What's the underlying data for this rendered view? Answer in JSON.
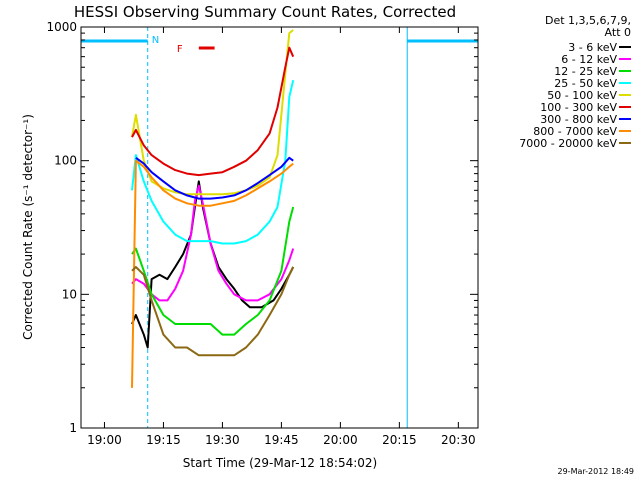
{
  "chart_data": {
    "type": "line",
    "title": "HESSI Observing Summary Count Rates, Corrected",
    "xlabel": "Start Time (29-Mar-12 18:54:02)",
    "ylabel": "Corrected Count Rate (s⁻¹ detector⁻¹)",
    "xlim": [
      "18:54:02",
      "20:35:00"
    ],
    "ylim": [
      1,
      1000
    ],
    "yscale": "log",
    "x_ticks": [
      "19:00",
      "19:15",
      "19:30",
      "19:45",
      "20:00",
      "20:15",
      "20:30"
    ],
    "y_ticks": [
      "1",
      "10",
      "100",
      "1000"
    ],
    "legend_header": [
      "Det 1,3,5,6,7,9,",
      "Att 0"
    ],
    "legend_position": "right",
    "timestamp": "29-Mar-2012 18:49",
    "flags": [
      {
        "label": "N",
        "color": "#00bfff"
      },
      {
        "label": "F",
        "color": "#e00000"
      }
    ],
    "night_intervals": [
      {
        "start": "18:54:02",
        "end": "19:11:00"
      },
      {
        "start": "20:17:00",
        "end": "20:35:00"
      }
    ],
    "flare_flag": {
      "start": "19:24:00",
      "end": "19:28:00"
    },
    "series": [
      {
        "name": "3 - 6 keV",
        "color": "#000000",
        "x": [
          "19:07",
          "19:08",
          "19:10",
          "19:11",
          "19:12",
          "19:14",
          "19:16",
          "19:18",
          "19:20",
          "19:22",
          "19:23",
          "19:24",
          "19:25",
          "19:27",
          "19:29",
          "19:31",
          "19:33",
          "19:35",
          "19:37",
          "19:40",
          "19:43",
          "19:45",
          "19:47",
          "19:48"
        ],
        "y": [
          6,
          7,
          5,
          4,
          13,
          14,
          13,
          16,
          20,
          28,
          45,
          70,
          45,
          24,
          16,
          13,
          11,
          9,
          8,
          8,
          9,
          11,
          14,
          16
        ]
      },
      {
        "name": "6 - 12 keV",
        "color": "#ff00ff",
        "x": [
          "19:07",
          "19:08",
          "19:10",
          "19:12",
          "19:14",
          "19:16",
          "19:18",
          "19:20",
          "19:22",
          "19:23",
          "19:24",
          "19:25",
          "19:27",
          "19:29",
          "19:31",
          "19:33",
          "19:36",
          "19:39",
          "19:42",
          "19:45",
          "19:47",
          "19:48"
        ],
        "y": [
          12,
          13,
          12,
          10,
          9,
          9,
          11,
          15,
          28,
          50,
          65,
          48,
          24,
          15,
          12,
          10,
          9,
          9,
          10,
          13,
          18,
          22
        ]
      },
      {
        "name": "12 - 25 keV",
        "color": "#00dd00",
        "x": [
          "19:07",
          "19:08",
          "19:10",
          "19:12",
          "19:15",
          "19:18",
          "19:21",
          "19:24",
          "19:27",
          "19:30",
          "19:33",
          "19:36",
          "19:39",
          "19:42",
          "19:45",
          "19:47",
          "19:48"
        ],
        "y": [
          20,
          22,
          15,
          10,
          7,
          6,
          6,
          6,
          6,
          5,
          5,
          6,
          7,
          9,
          15,
          35,
          45
        ]
      },
      {
        "name": "25 - 50 keV",
        "color": "#00ffff",
        "x": [
          "19:07",
          "19:08",
          "19:10",
          "19:12",
          "19:15",
          "19:18",
          "19:21",
          "19:24",
          "19:27",
          "19:30",
          "19:33",
          "19:36",
          "19:39",
          "19:42",
          "19:44",
          "19:46",
          "19:47",
          "19:48"
        ],
        "y": [
          60,
          110,
          70,
          50,
          35,
          28,
          25,
          25,
          25,
          24,
          24,
          25,
          28,
          35,
          45,
          100,
          300,
          400
        ]
      },
      {
        "name": "50 - 100 keV",
        "color": "#dddd00",
        "x": [
          "19:07",
          "19:08",
          "19:10",
          "19:12",
          "19:15",
          "19:18",
          "19:21",
          "19:24",
          "19:27",
          "19:30",
          "19:33",
          "19:36",
          "19:39",
          "19:42",
          "19:44",
          "19:46",
          "19:47",
          "19:48"
        ],
        "y": [
          150,
          220,
          100,
          70,
          62,
          58,
          56,
          56,
          56,
          56,
          57,
          60,
          65,
          75,
          110,
          450,
          900,
          950
        ]
      },
      {
        "name": "100 - 300 keV",
        "color": "#e00000",
        "x": [
          "19:07",
          "19:08",
          "19:10",
          "19:12",
          "19:15",
          "19:18",
          "19:21",
          "19:24",
          "19:27",
          "19:30",
          "19:33",
          "19:36",
          "19:39",
          "19:42",
          "19:44",
          "19:46",
          "19:47",
          "19:48"
        ],
        "y": [
          150,
          170,
          130,
          110,
          95,
          85,
          80,
          78,
          80,
          82,
          90,
          100,
          120,
          160,
          250,
          500,
          700,
          600
        ]
      },
      {
        "name": "300 - 800 keV",
        "color": "#0000ff",
        "x": [
          "19:08",
          "19:10",
          "19:12",
          "19:15",
          "19:18",
          "19:21",
          "19:24",
          "19:27",
          "19:30",
          "19:33",
          "19:36",
          "19:39",
          "19:42",
          "19:45",
          "19:47",
          "19:48"
        ],
        "y": [
          105,
          95,
          82,
          70,
          60,
          55,
          52,
          52,
          53,
          55,
          60,
          68,
          78,
          90,
          105,
          100
        ]
      },
      {
        "name": "800 - 7000 keV",
        "color": "#ff8c00",
        "x": [
          "19:07",
          "19:08",
          "19:10",
          "19:12",
          "19:15",
          "19:18",
          "19:21",
          "19:24",
          "19:27",
          "19:30",
          "19:33",
          "19:36",
          "19:39",
          "19:42",
          "19:45",
          "19:47",
          "19:48"
        ],
        "y": [
          2,
          100,
          90,
          75,
          60,
          52,
          48,
          46,
          46,
          48,
          50,
          55,
          62,
          70,
          80,
          90,
          95
        ]
      },
      {
        "name": "7000 - 20000 keV",
        "color": "#8b6914",
        "x": [
          "19:07",
          "19:08",
          "19:10",
          "19:12",
          "19:15",
          "19:18",
          "19:21",
          "19:24",
          "19:27",
          "19:30",
          "19:33",
          "19:36",
          "19:39",
          "19:42",
          "19:45",
          "19:47",
          "19:48"
        ],
        "y": [
          15,
          16,
          14,
          9,
          5,
          4,
          4,
          3.5,
          3.5,
          3.5,
          3.5,
          4,
          5,
          7,
          10,
          14,
          16
        ]
      }
    ]
  }
}
